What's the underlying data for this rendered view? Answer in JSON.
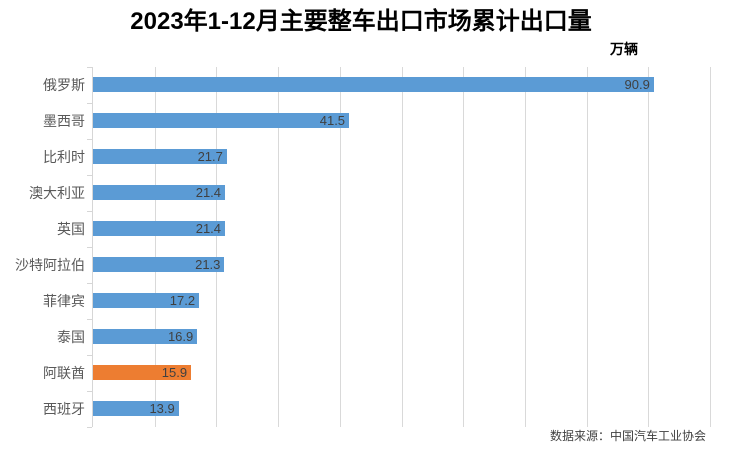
{
  "chart": {
    "title": "2023年1-12月主要整车出口市场累计出口量",
    "unit_label": "万辆",
    "source": "数据来源：中国汽车工业协会"
  },
  "chart_data": {
    "type": "bar",
    "orientation": "horizontal",
    "title": "2023年1-12月主要整车出口市场累计出口量",
    "unit": "万辆",
    "source": "数据来源：中国汽车工业协会",
    "categories": [
      "俄罗斯",
      "墨西哥",
      "比利时",
      "澳大利亚",
      "英国",
      "沙特阿拉伯",
      "菲律宾",
      "泰国",
      "阿联酋",
      "西班牙"
    ],
    "values": [
      90.9,
      41.5,
      21.7,
      21.4,
      21.4,
      21.3,
      17.2,
      16.9,
      15.9,
      13.9
    ],
    "value_labels": [
      "90.9",
      "41.5",
      "21.7",
      "21.4",
      "21.4",
      "21.3",
      "17.2",
      "16.9",
      "15.9",
      "13.9"
    ],
    "highlight_index": 8,
    "xlim": [
      0,
      100
    ],
    "gridline_step": 10,
    "grid": true,
    "legend": false,
    "value_label_position": "inside-end",
    "colors": {
      "bar": "#5B9BD5",
      "highlight": "#ED7D31",
      "gridline": "#D9D9D9",
      "axis": "#D6D6D6",
      "value_label": "#404040",
      "category_label": "#595959",
      "title": "#000000",
      "background": "#FFFFFF"
    }
  }
}
